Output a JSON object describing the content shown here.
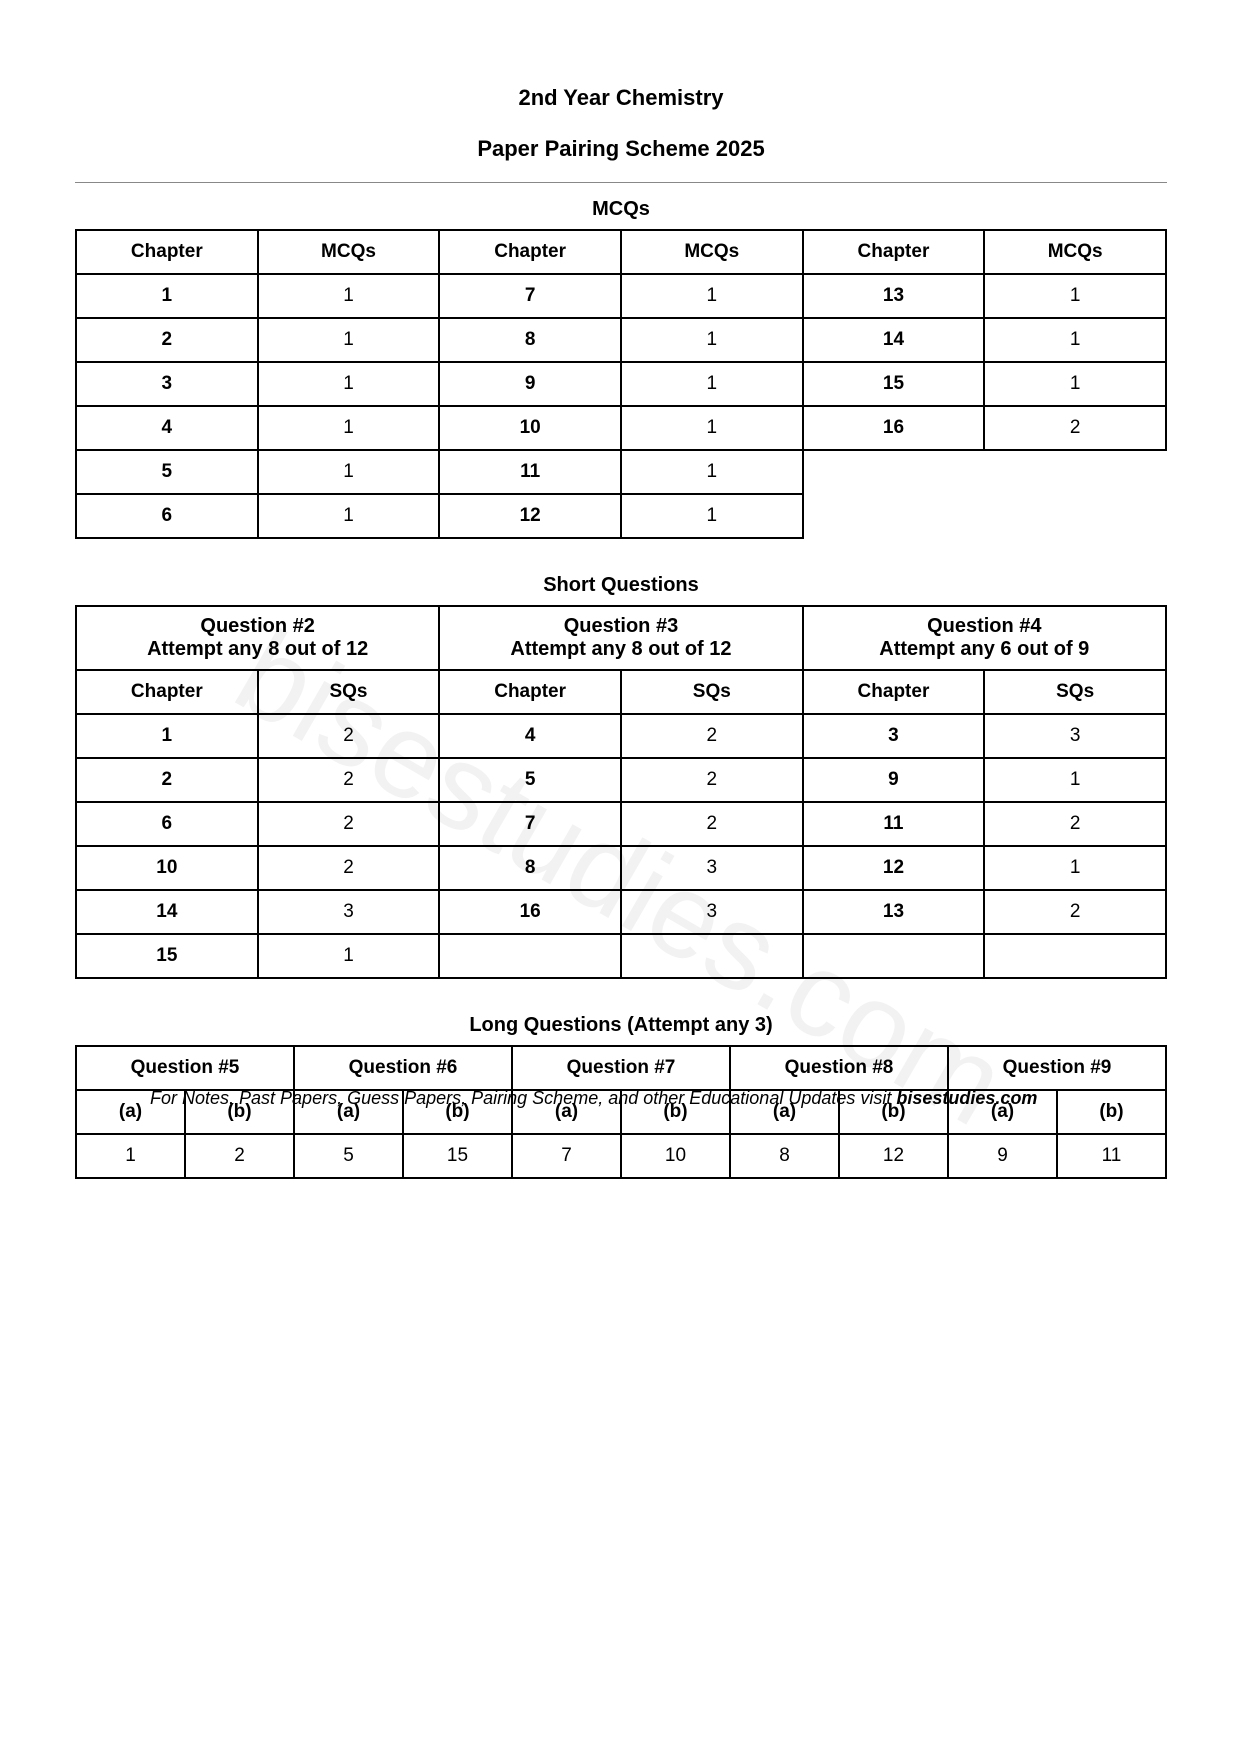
{
  "header": {
    "title": "2nd Year Chemistry",
    "subtitle": "Paper Pairing Scheme 2025"
  },
  "watermark": "bisestudies.com",
  "mcqs": {
    "section_title": "MCQs",
    "col_chapter": "Chapter",
    "col_mcqs": "MCQs",
    "rows": [
      {
        "c1": "1",
        "m1": "1",
        "c2": "7",
        "m2": "1",
        "c3": "13",
        "m3": "1"
      },
      {
        "c1": "2",
        "m1": "1",
        "c2": "8",
        "m2": "1",
        "c3": "14",
        "m3": "1"
      },
      {
        "c1": "3",
        "m1": "1",
        "c2": "9",
        "m2": "1",
        "c3": "15",
        "m3": "1"
      },
      {
        "c1": "4",
        "m1": "1",
        "c2": "10",
        "m2": "1",
        "c3": "16",
        "m3": "2"
      },
      {
        "c1": "5",
        "m1": "1",
        "c2": "11",
        "m2": "1",
        "c3": "",
        "m3": ""
      },
      {
        "c1": "6",
        "m1": "1",
        "c2": "12",
        "m2": "1",
        "c3": "",
        "m3": ""
      }
    ]
  },
  "short_questions": {
    "section_title": "Short Questions",
    "col_chapter": "Chapter",
    "col_sqs": "SQs",
    "q2_title": "Question #2",
    "q2_attempt": "Attempt any 8 out of 12",
    "q3_title": "Question #3",
    "q3_attempt": "Attempt any 8 out of 12",
    "q4_title": "Question #4",
    "q4_attempt": "Attempt any 6 out of 9",
    "rows": [
      {
        "c1": "1",
        "s1": "2",
        "c2": "4",
        "s2": "2",
        "c3": "3",
        "s3": "3"
      },
      {
        "c1": "2",
        "s1": "2",
        "c2": "5",
        "s2": "2",
        "c3": "9",
        "s3": "1"
      },
      {
        "c1": "6",
        "s1": "2",
        "c2": "7",
        "s2": "2",
        "c3": "11",
        "s3": "2"
      },
      {
        "c1": "10",
        "s1": "2",
        "c2": "8",
        "s2": "3",
        "c3": "12",
        "s3": "1"
      },
      {
        "c1": "14",
        "s1": "3",
        "c2": "16",
        "s2": "3",
        "c3": "13",
        "s3": "2"
      },
      {
        "c1": "15",
        "s1": "1",
        "c2": "",
        "s2": "",
        "c3": "",
        "s3": ""
      }
    ]
  },
  "long_questions": {
    "section_title": "Long Questions (Attempt any 3)",
    "q5": "Question #5",
    "q6": "Question #6",
    "q7": "Question #7",
    "q8": "Question #8",
    "q9": "Question #9",
    "part_a": "(a)",
    "part_b": "(b)",
    "values": {
      "q5a": "1",
      "q5b": "2",
      "q6a": "5",
      "q6b": "15",
      "q7a": "7",
      "q7b": "10",
      "q8a": "8",
      "q8b": "12",
      "q9a": "9",
      "q9b": "11"
    }
  },
  "footer": {
    "text": "For Notes, Past Papers, Guess Papers, Pairing Scheme, and other Educational Updates visit ",
    "site": "bisestudies.com"
  }
}
